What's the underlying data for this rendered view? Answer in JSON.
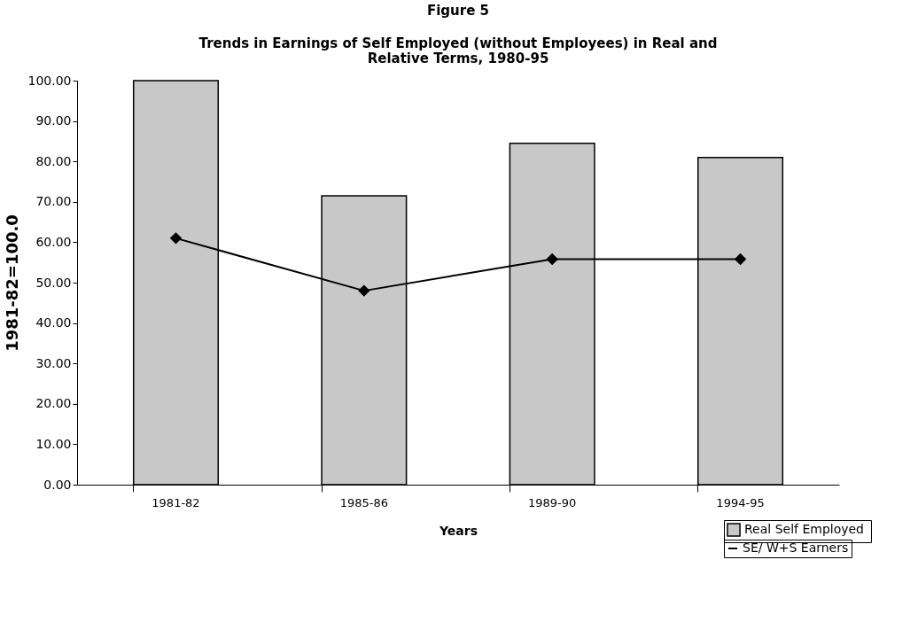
{
  "chart_data": {
    "type": "bar",
    "title": "Figure 5",
    "subtitle": "Trends in Earnings of Self Employed (without Employees) in Real and Relative Terms, 1980-95",
    "xlabel": "Years",
    "ylabel": "1981-82=100.0",
    "categories": [
      "1981-82",
      "1985-86",
      "1989-90",
      "1994-95"
    ],
    "series": [
      {
        "name": "Real Self  Employed",
        "color": "#c8c8c8",
        "values": [
          100.0,
          71.5,
          84.5,
          81.0
        ]
      },
      {
        "name": "SE/ W+S Earners",
        "type": "line",
        "color": "#000000",
        "marker": "diamond",
        "values": [
          61.0,
          48.0,
          55.8,
          55.8
        ]
      }
    ],
    "ylim": [
      0,
      100
    ],
    "yticks": [
      {
        "value": 0,
        "label": "0.00"
      },
      {
        "value": 10,
        "label": "10.00"
      },
      {
        "value": 20,
        "label": "20.00"
      },
      {
        "value": 30,
        "label": "30.00"
      },
      {
        "value": 40,
        "label": "40.00"
      },
      {
        "value": 50,
        "label": "50.00"
      },
      {
        "value": 60,
        "label": "60.00"
      },
      {
        "value": 70,
        "label": "70.00"
      },
      {
        "value": 80,
        "label": "80.00"
      },
      {
        "value": 90,
        "label": "90.00"
      },
      {
        "value": 100,
        "label": "100.00"
      }
    ],
    "grid": false,
    "legend": "bottom right"
  }
}
